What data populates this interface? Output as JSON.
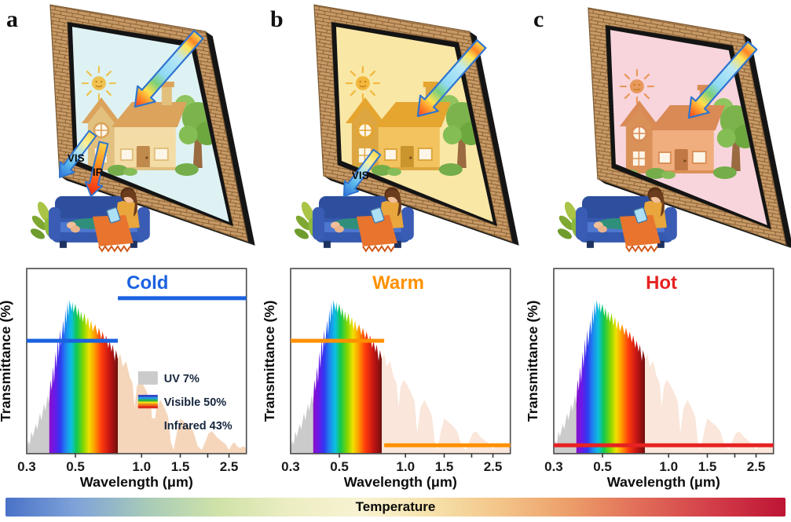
{
  "panels": [
    {
      "letter": "a",
      "state": "Cold",
      "out_arrow_labels": {
        "vis": "VIS",
        "ir": "IR"
      },
      "colors": {
        "glass": "#def2f3",
        "sun": "#eec34f",
        "walls": "#f3dca6",
        "walls2": "#e2c07e",
        "roof": "#dba35c",
        "door": "#bf8a4c"
      }
    },
    {
      "letter": "b",
      "state": "Warm",
      "out_arrow_labels": {
        "vis": "VIS"
      },
      "colors": {
        "glass": "#f9e7a6",
        "sun": "#f2b83c",
        "walls": "#f2c35f",
        "walls2": "#dda640",
        "roof": "#e5a52f",
        "door": "#c9952c"
      }
    },
    {
      "letter": "c",
      "state": "Hot",
      "out_arrow_labels": {},
      "colors": {
        "glass": "#f8d5dc",
        "sun": "#e8995c",
        "walls": "#f0ad7e",
        "walls2": "#da9158",
        "roof": "#d98a55",
        "door": "#c07844"
      }
    }
  ],
  "solar_spectrum": {
    "x_unit": "μm",
    "uv_visible_boundary": 0.38,
    "visible_ir_boundary": 0.78,
    "uv_color": "#cbcbcb",
    "legend_visible_stripes": [
      "#3548c8",
      "#1e9ae0",
      "#2ab24a",
      "#f0d818",
      "#f07818",
      "#e02818"
    ],
    "visible_gradient": [
      [
        0,
        "#8a10c8"
      ],
      [
        0.08,
        "#6a18e8"
      ],
      [
        0.16,
        "#3038f0"
      ],
      [
        0.24,
        "#1e86f0"
      ],
      [
        0.32,
        "#0cc0e0"
      ],
      [
        0.4,
        "#12c84e"
      ],
      [
        0.5,
        "#86d800"
      ],
      [
        0.58,
        "#f0e000"
      ],
      [
        0.66,
        "#ff9c00"
      ],
      [
        0.76,
        "#ff3c0c"
      ],
      [
        0.88,
        "#c41414"
      ],
      [
        1,
        "#70100e"
      ]
    ],
    "points": [
      [
        0.3,
        2
      ],
      [
        0.305,
        7
      ],
      [
        0.31,
        5
      ],
      [
        0.315,
        12
      ],
      [
        0.32,
        9
      ],
      [
        0.33,
        16
      ],
      [
        0.335,
        13
      ],
      [
        0.345,
        22
      ],
      [
        0.35,
        18
      ],
      [
        0.36,
        27
      ],
      [
        0.365,
        23
      ],
      [
        0.375,
        32
      ],
      [
        0.38,
        27
      ],
      [
        0.385,
        40
      ],
      [
        0.39,
        34
      ],
      [
        0.395,
        47
      ],
      [
        0.4,
        38
      ],
      [
        0.405,
        55
      ],
      [
        0.41,
        46
      ],
      [
        0.415,
        62
      ],
      [
        0.42,
        52
      ],
      [
        0.425,
        67
      ],
      [
        0.43,
        58
      ],
      [
        0.44,
        72
      ],
      [
        0.445,
        64
      ],
      [
        0.45,
        78
      ],
      [
        0.455,
        70
      ],
      [
        0.46,
        82
      ],
      [
        0.465,
        74
      ],
      [
        0.47,
        83
      ],
      [
        0.48,
        77
      ],
      [
        0.485,
        82
      ],
      [
        0.49,
        76
      ],
      [
        0.5,
        81
      ],
      [
        0.51,
        74
      ],
      [
        0.515,
        79
      ],
      [
        0.525,
        72
      ],
      [
        0.53,
        77
      ],
      [
        0.54,
        71
      ],
      [
        0.55,
        76
      ],
      [
        0.56,
        69
      ],
      [
        0.57,
        74
      ],
      [
        0.58,
        67
      ],
      [
        0.59,
        72
      ],
      [
        0.6,
        66
      ],
      [
        0.615,
        70
      ],
      [
        0.63,
        64
      ],
      [
        0.64,
        68
      ],
      [
        0.655,
        62
      ],
      [
        0.665,
        66
      ],
      [
        0.68,
        60
      ],
      [
        0.69,
        64
      ],
      [
        0.705,
        57
      ],
      [
        0.715,
        61
      ],
      [
        0.73,
        55
      ],
      [
        0.74,
        59
      ],
      [
        0.755,
        50
      ],
      [
        0.765,
        56
      ],
      [
        0.78,
        51
      ],
      [
        0.8,
        54
      ],
      [
        0.82,
        47
      ],
      [
        0.85,
        50
      ],
      [
        0.88,
        42
      ],
      [
        0.91,
        38
      ],
      [
        0.93,
        25
      ],
      [
        0.95,
        36
      ],
      [
        0.98,
        40
      ],
      [
        1.02,
        37
      ],
      [
        1.06,
        33
      ],
      [
        1.1,
        28
      ],
      [
        1.13,
        11
      ],
      [
        1.17,
        25
      ],
      [
        1.22,
        29
      ],
      [
        1.27,
        25
      ],
      [
        1.32,
        20
      ],
      [
        1.36,
        6
      ],
      [
        1.4,
        2
      ],
      [
        1.45,
        12
      ],
      [
        1.5,
        19
      ],
      [
        1.57,
        17
      ],
      [
        1.64,
        15
      ],
      [
        1.72,
        12
      ],
      [
        1.8,
        4
      ],
      [
        1.88,
        2
      ],
      [
        1.96,
        7
      ],
      [
        2.02,
        11
      ],
      [
        2.1,
        12
      ],
      [
        2.2,
        9
      ],
      [
        2.3,
        7
      ],
      [
        2.42,
        5
      ],
      [
        2.5,
        2
      ],
      [
        2.58,
        5
      ],
      [
        2.64,
        6
      ],
      [
        2.72,
        4
      ],
      [
        2.8,
        3
      ],
      [
        2.9,
        4
      ],
      [
        3.0,
        3
      ]
    ]
  },
  "chart_data": [
    {
      "type": "area",
      "title": "Cold",
      "title_color": "#1a62e0",
      "title_x": 0.55,
      "xlabel": "Wavelength (μm)",
      "ylabel": "Transmittance (%)",
      "x_scale": "log",
      "x_domain": [
        0.3,
        3.0
      ],
      "y_domain": [
        0,
        100
      ],
      "x_ticks": [
        {
          "value": 0.3,
          "label": "0.3"
        },
        {
          "value": 0.5,
          "label": "0.5"
        },
        {
          "value": 1.0,
          "label": "1.0"
        },
        {
          "value": 1.5,
          "label": "1.5"
        },
        {
          "value": 2.0,
          "label": ""
        },
        {
          "value": 2.5,
          "label": "2.5"
        }
      ],
      "ir_fill": "#f5d6bb",
      "transmittance_lines": [
        {
          "x": [
            0.3,
            0.78
          ],
          "level": 61,
          "color": "#1a62e0",
          "band": "UV+Visible"
        },
        {
          "x": [
            0.78,
            3.0
          ],
          "level": 84,
          "color": "#1a62e0",
          "band": "Infrared"
        }
      ],
      "legend": [
        {
          "swatch": "uv",
          "label": "UV 7%"
        },
        {
          "swatch": "visible",
          "label": "Visible 50%"
        },
        {
          "swatch": "infrared",
          "label": "Infrared 43%"
        }
      ]
    },
    {
      "type": "area",
      "title": "Warm",
      "title_color": "#ff9000",
      "title_x": 0.49,
      "xlabel": "Wavelength (μm)",
      "ylabel": "Transmittance (%)",
      "x_scale": "log",
      "x_domain": [
        0.3,
        3.0
      ],
      "y_domain": [
        0,
        100
      ],
      "x_ticks": [
        {
          "value": 0.3,
          "label": "0.3"
        },
        {
          "value": 0.5,
          "label": "0.5"
        },
        {
          "value": 1.0,
          "label": "1.0"
        },
        {
          "value": 1.5,
          "label": "1.5"
        },
        {
          "value": 2.0,
          "label": ""
        },
        {
          "value": 2.5,
          "label": "2.5"
        }
      ],
      "ir_fill": "#fae6da",
      "transmittance_lines": [
        {
          "x": [
            0.3,
            0.8
          ],
          "level": 61,
          "color": "#ff9000",
          "band": "UV+Visible"
        },
        {
          "x": [
            0.8,
            3.0
          ],
          "level": 4.5,
          "color": "#ff9000",
          "band": "Infrared"
        }
      ]
    },
    {
      "type": "area",
      "title": "Hot",
      "title_color": "#e62222",
      "title_x": 0.49,
      "xlabel": "Wavelength (μm)",
      "ylabel": "Transmittance (%)",
      "x_scale": "log",
      "x_domain": [
        0.3,
        3.0
      ],
      "y_domain": [
        0,
        100
      ],
      "x_ticks": [
        {
          "value": 0.3,
          "label": "0.3"
        },
        {
          "value": 0.5,
          "label": "0.5"
        },
        {
          "value": 1.0,
          "label": "1.0"
        },
        {
          "value": 1.5,
          "label": "1.5"
        },
        {
          "value": 2.0,
          "label": ""
        },
        {
          "value": 2.5,
          "label": "2.5"
        }
      ],
      "ir_fill": "#fae6da",
      "transmittance_lines": [
        {
          "x": [
            0.3,
            3.0
          ],
          "level": 4.5,
          "color": "#e62222",
          "band": "Full spectrum"
        }
      ]
    }
  ],
  "temperature_bar": {
    "label": "Temperature",
    "gradient": [
      "#4a72c8",
      "#7fa3d8",
      "#a8cbb8",
      "#cfe2a8",
      "#ecedc2",
      "#f8f3d2",
      "#f6e2ab",
      "#f3c488",
      "#ec9c68",
      "#e06a58",
      "#d23c48",
      "#bd1434"
    ]
  }
}
